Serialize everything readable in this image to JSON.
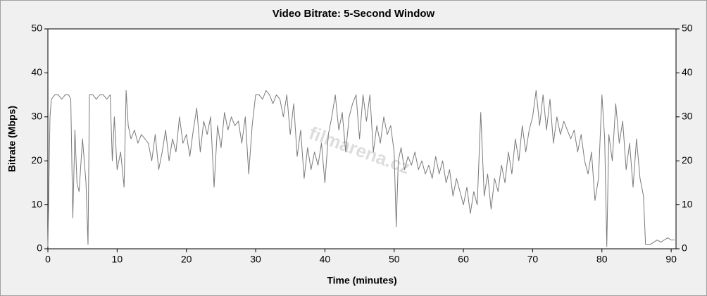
{
  "chart_data": {
    "type": "line",
    "title": "Video Bitrate: 5-Second Window",
    "xlabel": "Time (minutes)",
    "ylabel": "Bitrate (Mbps)",
    "watermark": "filmarena.cz",
    "xlim": [
      0,
      90.7
    ],
    "xticks": [
      0,
      10,
      20,
      30,
      40,
      50,
      60,
      70,
      80,
      90
    ],
    "ylim": [
      0,
      50
    ],
    "yticks": [
      0,
      10,
      20,
      30,
      40,
      50
    ],
    "y2lim": [
      0,
      50
    ],
    "y2ticks": [
      0,
      10,
      20,
      30,
      40,
      50
    ],
    "grid": false,
    "x": [
      0,
      0.3,
      0.5,
      1,
      1.5,
      2,
      2.5,
      3,
      3.3,
      3.6,
      3.9,
      4.2,
      4.5,
      5,
      5.5,
      5.8,
      6,
      6.5,
      7,
      7.5,
      8,
      8.5,
      9,
      9.3,
      9.6,
      10,
      10.5,
      11,
      11.3,
      11.6,
      12,
      12.5,
      13,
      13.5,
      14,
      14.5,
      15,
      15.5,
      16,
      16.5,
      17,
      17.5,
      18,
      18.5,
      19,
      19.5,
      20,
      20.5,
      21,
      21.5,
      22,
      22.5,
      23,
      23.5,
      24,
      24.5,
      25,
      25.5,
      26,
      26.5,
      27,
      27.5,
      28,
      28.5,
      29,
      29.5,
      30,
      30.5,
      31,
      31.5,
      32,
      32.5,
      33,
      33.5,
      34,
      34.5,
      35,
      35.5,
      36,
      36.5,
      37,
      37.5,
      38,
      38.5,
      39,
      39.5,
      40,
      40.5,
      41,
      41.5,
      42,
      42.5,
      43,
      43.5,
      44,
      44.5,
      45,
      45.5,
      46,
      46.5,
      47,
      47.5,
      48,
      48.5,
      49,
      49.5,
      50,
      50.3,
      50.6,
      51,
      51.5,
      52,
      52.5,
      53,
      53.5,
      54,
      54.5,
      55,
      55.5,
      56,
      56.5,
      57,
      57.5,
      58,
      58.5,
      59,
      59.5,
      60,
      60.5,
      61,
      61.5,
      62,
      62.5,
      63,
      63.5,
      64,
      64.5,
      65,
      65.5,
      66,
      66.5,
      67,
      67.5,
      68,
      68.5,
      69,
      69.5,
      70,
      70.5,
      71,
      71.5,
      72,
      72.5,
      73,
      73.5,
      74,
      74.5,
      75,
      75.5,
      76,
      76.5,
      77,
      77.5,
      78,
      78.5,
      79,
      79.5,
      80,
      80.4,
      80.7,
      81,
      81.5,
      82,
      82.5,
      83,
      83.5,
      84,
      84.5,
      85,
      85.5,
      86,
      86.3,
      87,
      87.5,
      88,
      88.5,
      89,
      89.5,
      90,
      90.5
    ],
    "series": [
      {
        "color": "#7a7a7a",
        "values": [
          0.5,
          30,
          34,
          35,
          35,
          34,
          35,
          35,
          34,
          7,
          27,
          15,
          13,
          25,
          15,
          1,
          35,
          35,
          34,
          35,
          35,
          34,
          35,
          20,
          30,
          18,
          22,
          14,
          36,
          28,
          25,
          27,
          24,
          26,
          25,
          24,
          20,
          26,
          18,
          22,
          27,
          20,
          25,
          22,
          30,
          24,
          26,
          21,
          27,
          32,
          22,
          29,
          26,
          30,
          14,
          28,
          23,
          31,
          27,
          30,
          28,
          29,
          24,
          30,
          17,
          28,
          35,
          35,
          34,
          36,
          35,
          33,
          35,
          34,
          30,
          35,
          26,
          33,
          21,
          27,
          16,
          23,
          18,
          22,
          19,
          24,
          15,
          26,
          30,
          35,
          27,
          31,
          22,
          30,
          33,
          35,
          25,
          35,
          29,
          35,
          22,
          28,
          24,
          30,
          26,
          28,
          22,
          5,
          20,
          23,
          18,
          21,
          19,
          22,
          18,
          20,
          17,
          19,
          16,
          21,
          17,
          20,
          15,
          18,
          12,
          16,
          13,
          10,
          14,
          8,
          13,
          10,
          31,
          12,
          17,
          9,
          16,
          13,
          19,
          15,
          22,
          17,
          25,
          20,
          28,
          22,
          27,
          30,
          36,
          28,
          35,
          27,
          34,
          24,
          30,
          26,
          29,
          27,
          25,
          27,
          22,
          26,
          20,
          17,
          22,
          11,
          16,
          35,
          25,
          0.5,
          26,
          20,
          33,
          24,
          29,
          18,
          24,
          14,
          25,
          16,
          12,
          1,
          1,
          1.5,
          2,
          1.5,
          2,
          2.5,
          2,
          2
        ]
      }
    ]
  }
}
